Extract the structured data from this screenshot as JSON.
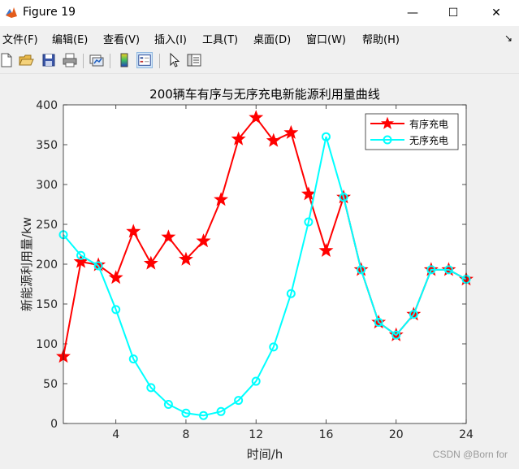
{
  "window": {
    "title": "Figure 19",
    "minimize": "—",
    "maximize": "☐",
    "close": "✕"
  },
  "menu": [
    "文件(F)",
    "编辑(E)",
    "查看(V)",
    "插入(I)",
    "工具(T)",
    "桌面(D)",
    "窗口(W)",
    "帮助(H)"
  ],
  "dock_arrow": "↘",
  "toolbar_icons": [
    "new-figure-icon",
    "open-file-icon",
    "save-icon",
    "print-icon",
    "link-plot-icon",
    "colorbar-icon",
    "legend-icon",
    "pointer-icon",
    "property-inspector-icon"
  ],
  "colors": {
    "series1": "#ff0000",
    "series2": "#00ffff",
    "background": "#f0f0f0"
  },
  "watermark": "CSDN @Born for",
  "chart_data": {
    "type": "line",
    "title": "200辆车有序与无序充电新能源利用量曲线",
    "xlabel": "时间/h",
    "ylabel": "新能源利用量/kw",
    "xlim": [
      1,
      24
    ],
    "ylim": [
      0,
      400
    ],
    "xticks": [
      4,
      8,
      12,
      16,
      20,
      24
    ],
    "yticks": [
      0,
      50,
      100,
      150,
      200,
      250,
      300,
      350,
      400
    ],
    "grid": false,
    "legend_position": "top-right",
    "x": [
      1,
      2,
      3,
      4,
      5,
      6,
      7,
      8,
      9,
      10,
      11,
      12,
      13,
      14,
      15,
      16,
      17,
      18,
      19,
      20,
      21,
      22,
      23,
      24
    ],
    "series": [
      {
        "name": "有序充电",
        "color": "#ff0000",
        "marker": "star",
        "values": [
          84,
          203,
          199,
          183,
          241,
          201,
          234,
          206,
          229,
          281,
          357,
          384,
          355,
          365,
          288,
          217,
          284,
          193,
          127,
          111,
          137,
          193,
          193,
          181
        ]
      },
      {
        "name": "无序充电",
        "color": "#00ffff",
        "marker": "circle",
        "values": [
          237,
          211,
          198,
          143,
          81,
          45,
          24,
          13,
          10,
          15,
          29,
          53,
          96,
          163,
          253,
          360,
          284,
          193,
          127,
          111,
          137,
          193,
          193,
          181
        ]
      }
    ]
  }
}
